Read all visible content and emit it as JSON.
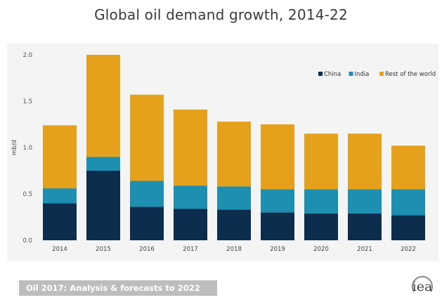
{
  "chart_data": {
    "type": "bar",
    "stacked": true,
    "title": "Global oil demand growth, 2014-22",
    "ylabel": "mb/d",
    "xlabel": "",
    "ylim": [
      0,
      2.0
    ],
    "yticks": [
      "0.0",
      "0.5",
      "1.0",
      "1.5",
      "2.0"
    ],
    "categories": [
      "2014",
      "2015",
      "2016",
      "2017",
      "2018",
      "2019",
      "2020",
      "2021",
      "2022"
    ],
    "series": [
      {
        "name": "China",
        "color": "#0d2d4f",
        "values": [
          0.4,
          0.75,
          0.36,
          0.34,
          0.33,
          0.3,
          0.29,
          0.29,
          0.27
        ]
      },
      {
        "name": "India",
        "color": "#1d8fb0",
        "values": [
          0.16,
          0.15,
          0.28,
          0.25,
          0.25,
          0.25,
          0.26,
          0.26,
          0.28
        ]
      },
      {
        "name": "Rest of the world",
        "color": "#e5a11c",
        "values": [
          0.68,
          1.1,
          0.93,
          0.82,
          0.7,
          0.7,
          0.6,
          0.6,
          0.47
        ]
      }
    ],
    "grid": false,
    "legend_position": "top-right"
  },
  "footer": {
    "text": "Oil 2017: Analysis & forecasts to 2022"
  },
  "logo": {
    "text": "iea"
  }
}
